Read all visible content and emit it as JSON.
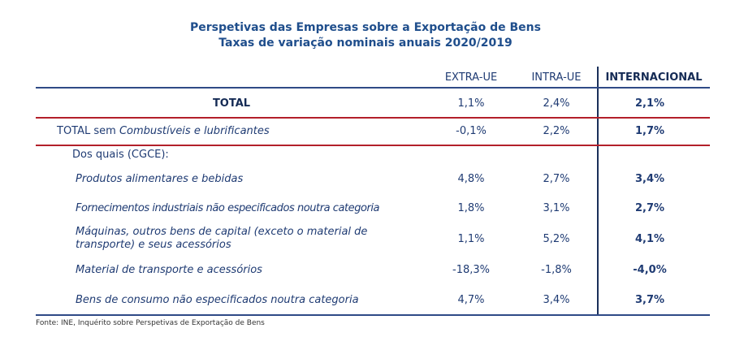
{
  "chart_data": {
    "type": "table",
    "title": "Perspetivas das Empresas sobre a Exportação de Bens",
    "subtitle": "Taxas de variação nominais anuais 2020/2019",
    "columns": [
      "EXTRA-UE",
      "INTRA-UE",
      "INTERNACIONAL"
    ],
    "total": {
      "label": "TOTAL",
      "values": [
        "1,1%",
        "2,4%",
        "2,1%"
      ]
    },
    "total_sem": {
      "prefix": "TOTAL sem ",
      "italic": "Combustíveis e lubrificantes",
      "values": [
        "-0,1%",
        "2,2%",
        "1,7%"
      ]
    },
    "dos_quais": "Dos quais (CGCE):",
    "rows": [
      {
        "label": "Produtos alimentares e bebidas",
        "values": [
          "4,8%",
          "2,7%",
          "3,4%"
        ]
      },
      {
        "label": "Fornecimentos industriais não especificados noutra categoria",
        "values": [
          "1,8%",
          "3,1%",
          "2,7%"
        ]
      },
      {
        "label": "Máquinas, outros bens de capital (exceto o material de transporte) e seus acessórios",
        "values": [
          "1,1%",
          "5,2%",
          "4,1%"
        ]
      },
      {
        "label": "Material de transporte e acessórios",
        "values": [
          "-18,3%",
          "-1,8%",
          "-4,0%"
        ]
      },
      {
        "label": "Bens de consumo não especificados noutra categoria",
        "values": [
          "4,7%",
          "3,4%",
          "3,7%"
        ]
      }
    ],
    "source": "Fonte: INE, Inquérito sobre Perspetivas de Exportação de Bens"
  }
}
